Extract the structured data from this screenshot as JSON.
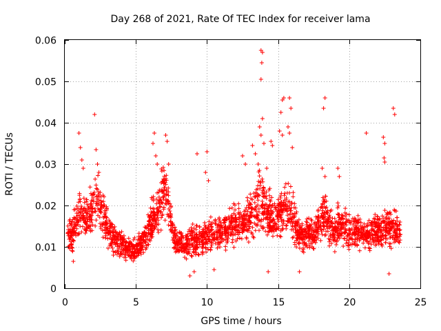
{
  "chart_data": {
    "type": "scatter",
    "title": "Day 268 of 2021, Rate Of TEC Index for receiver lama",
    "xlabel": "GPS time / hours",
    "ylabel": "ROTI / TECUs",
    "xlim": [
      0,
      25
    ],
    "ylim": [
      0,
      0.06
    ],
    "xticks": [
      0,
      5,
      10,
      15,
      20,
      25
    ],
    "yticks": [
      0,
      0.01,
      0.02,
      0.03,
      0.04,
      0.05,
      0.06
    ],
    "xtick_labels": [
      "0",
      "5",
      "10",
      "15",
      "20",
      "25"
    ],
    "ytick_labels": [
      "0",
      "0.01",
      "0.02",
      "0.03",
      "0.04",
      "0.05",
      "0.06"
    ],
    "grid": true,
    "marker": "+",
    "marker_color": "#ff0000",
    "profile": [
      [
        0.2,
        0.0135
      ],
      [
        0.5,
        0.0135
      ],
      [
        0.8,
        0.015
      ],
      [
        1.1,
        0.02
      ],
      [
        1.4,
        0.016
      ],
      [
        1.7,
        0.018
      ],
      [
        2.0,
        0.02
      ],
      [
        2.3,
        0.022
      ],
      [
        2.6,
        0.019
      ],
      [
        2.9,
        0.017
      ],
      [
        3.2,
        0.013
      ],
      [
        3.5,
        0.012
      ],
      [
        3.8,
        0.011
      ],
      [
        4.1,
        0.01
      ],
      [
        4.4,
        0.0095
      ],
      [
        4.7,
        0.0095
      ],
      [
        5.0,
        0.009
      ],
      [
        5.3,
        0.0105
      ],
      [
        5.6,
        0.012
      ],
      [
        5.9,
        0.014
      ],
      [
        6.2,
        0.017
      ],
      [
        6.5,
        0.018
      ],
      [
        6.8,
        0.022
      ],
      [
        7.1,
        0.024
      ],
      [
        7.4,
        0.018
      ],
      [
        7.7,
        0.012
      ],
      [
        8.0,
        0.0105
      ],
      [
        8.3,
        0.011
      ],
      [
        8.6,
        0.0105
      ],
      [
        8.9,
        0.0115
      ],
      [
        9.2,
        0.0115
      ],
      [
        9.5,
        0.012
      ],
      [
        9.8,
        0.012
      ],
      [
        10.1,
        0.0125
      ],
      [
        10.4,
        0.0135
      ],
      [
        10.7,
        0.0135
      ],
      [
        11.0,
        0.0135
      ],
      [
        11.3,
        0.014
      ],
      [
        11.6,
        0.0145
      ],
      [
        11.9,
        0.015
      ],
      [
        12.2,
        0.0155
      ],
      [
        12.5,
        0.016
      ],
      [
        12.8,
        0.0165
      ],
      [
        13.1,
        0.0175
      ],
      [
        13.4,
        0.019
      ],
      [
        13.7,
        0.022
      ],
      [
        14.0,
        0.02
      ],
      [
        14.3,
        0.018
      ],
      [
        14.6,
        0.0165
      ],
      [
        14.9,
        0.017
      ],
      [
        15.2,
        0.0175
      ],
      [
        15.5,
        0.019
      ],
      [
        15.8,
        0.02
      ],
      [
        16.1,
        0.0165
      ],
      [
        16.4,
        0.0135
      ],
      [
        16.7,
        0.0125
      ],
      [
        17.0,
        0.0125
      ],
      [
        17.3,
        0.013
      ],
      [
        17.6,
        0.0135
      ],
      [
        17.9,
        0.015
      ],
      [
        18.2,
        0.019
      ],
      [
        18.5,
        0.0155
      ],
      [
        18.8,
        0.0135
      ],
      [
        19.1,
        0.0145
      ],
      [
        19.4,
        0.016
      ],
      [
        19.7,
        0.015
      ],
      [
        20.0,
        0.0135
      ],
      [
        20.3,
        0.0135
      ],
      [
        20.6,
        0.014
      ],
      [
        20.9,
        0.0135
      ],
      [
        21.2,
        0.013
      ],
      [
        21.5,
        0.013
      ],
      [
        21.8,
        0.0135
      ],
      [
        22.1,
        0.0135
      ],
      [
        22.4,
        0.014
      ],
      [
        22.7,
        0.0145
      ],
      [
        23.0,
        0.0145
      ],
      [
        23.3,
        0.0145
      ],
      [
        23.6,
        0.0125
      ]
    ],
    "points": [
      [
        1.0,
        0.0375
      ],
      [
        1.1,
        0.034
      ],
      [
        1.2,
        0.031
      ],
      [
        1.3,
        0.029
      ],
      [
        2.1,
        0.042
      ],
      [
        2.2,
        0.0335
      ],
      [
        2.3,
        0.03
      ],
      [
        2.4,
        0.028
      ],
      [
        6.3,
        0.0375
      ],
      [
        6.2,
        0.035
      ],
      [
        6.4,
        0.032
      ],
      [
        6.5,
        0.03
      ],
      [
        7.1,
        0.037
      ],
      [
        7.2,
        0.0355
      ],
      [
        7.3,
        0.03
      ],
      [
        9.3,
        0.0325
      ],
      [
        10.0,
        0.033
      ],
      [
        9.9,
        0.028
      ],
      [
        10.1,
        0.026
      ],
      [
        12.5,
        0.032
      ],
      [
        12.7,
        0.03
      ],
      [
        13.2,
        0.0345
      ],
      [
        13.4,
        0.0325
      ],
      [
        13.6,
        0.03
      ],
      [
        13.8,
        0.0575
      ],
      [
        13.9,
        0.057
      ],
      [
        13.85,
        0.0545
      ],
      [
        13.8,
        0.0505
      ],
      [
        13.9,
        0.041
      ],
      [
        13.7,
        0.039
      ],
      [
        13.8,
        0.037
      ],
      [
        14.0,
        0.035
      ],
      [
        14.2,
        0.029
      ],
      [
        14.5,
        0.0355
      ],
      [
        14.6,
        0.0345
      ],
      [
        15.3,
        0.0455
      ],
      [
        15.4,
        0.046
      ],
      [
        15.2,
        0.0425
      ],
      [
        15.1,
        0.038
      ],
      [
        15.3,
        0.037
      ],
      [
        15.8,
        0.046
      ],
      [
        15.9,
        0.0435
      ],
      [
        15.7,
        0.039
      ],
      [
        15.8,
        0.0375
      ],
      [
        16.0,
        0.034
      ],
      [
        18.3,
        0.046
      ],
      [
        18.2,
        0.0435
      ],
      [
        18.1,
        0.029
      ],
      [
        18.3,
        0.027
      ],
      [
        19.2,
        0.029
      ],
      [
        19.3,
        0.027
      ],
      [
        21.2,
        0.0375
      ],
      [
        22.4,
        0.0365
      ],
      [
        22.5,
        0.035
      ],
      [
        22.45,
        0.0315
      ],
      [
        22.5,
        0.0305
      ],
      [
        23.1,
        0.0435
      ],
      [
        23.2,
        0.042
      ],
      [
        22.8,
        0.0035
      ],
      [
        8.8,
        0.003
      ],
      [
        9.1,
        0.004
      ],
      [
        14.3,
        0.004
      ],
      [
        16.5,
        0.004
      ],
      [
        0.6,
        0.0065
      ],
      [
        10.5,
        0.0045
      ]
    ]
  }
}
